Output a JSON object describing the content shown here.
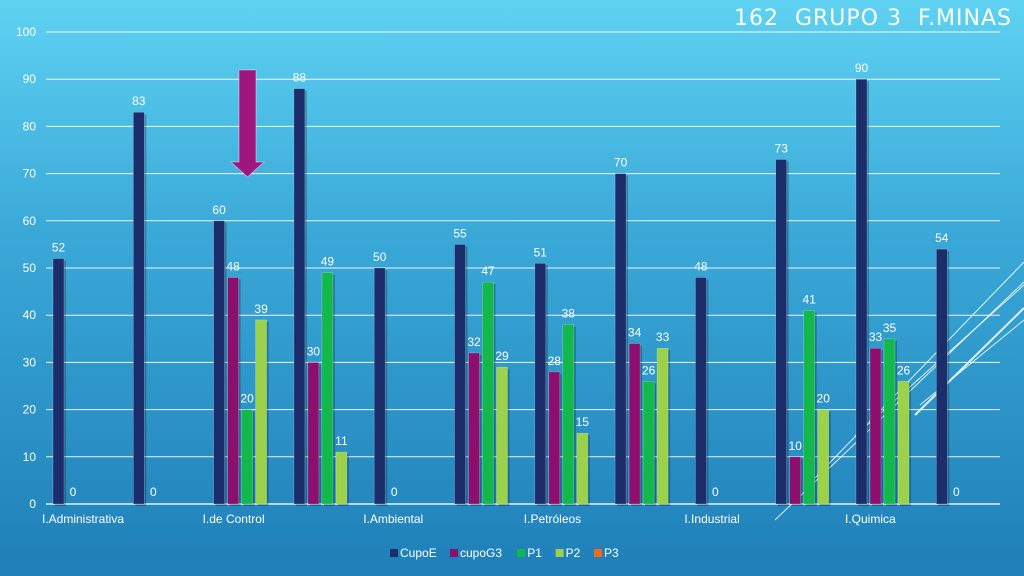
{
  "slide": {
    "title": "162  GRUPO 3  F.MINAS"
  },
  "colors": {
    "CupoE": "#1b2d6b",
    "cupoG3": "#8c0f6e",
    "P1": "#12b84a",
    "P2": "#9bd24a",
    "P3": "#e86b1f",
    "arrow": "#a0167f"
  },
  "chart_data": {
    "type": "bar",
    "categories": [
      "I.Administrativa",
      "",
      "I.de Control",
      "",
      "I.Ambiental",
      "",
      "I.Petróleos",
      "",
      "I.Industrial",
      "",
      "I.Quimica",
      ""
    ],
    "series": [
      {
        "name": "CupoE",
        "values": [
          52,
          83,
          60,
          88,
          50,
          55,
          51,
          70,
          48,
          73,
          90,
          54
        ]
      },
      {
        "name": "cupoG3",
        "values": [
          null,
          null,
          48,
          30,
          null,
          32,
          28,
          34,
          null,
          10,
          33,
          null
        ]
      },
      {
        "name": "P1",
        "values": [
          null,
          null,
          20,
          49,
          null,
          47,
          38,
          26,
          null,
          41,
          35,
          null
        ]
      },
      {
        "name": "P2",
        "values": [
          null,
          null,
          39,
          11,
          null,
          29,
          15,
          33,
          null,
          20,
          26,
          null
        ]
      },
      {
        "name": "P3",
        "values": [
          null,
          null,
          null,
          null,
          null,
          null,
          null,
          null,
          null,
          null,
          null,
          null
        ]
      }
    ],
    "zero_labels": [
      0,
      0,
      null,
      null,
      0,
      null,
      null,
      null,
      0,
      null,
      null,
      0
    ],
    "yticks": [
      0,
      10,
      20,
      30,
      40,
      50,
      60,
      70,
      80,
      90,
      100
    ],
    "ylim": [
      0,
      100
    ],
    "grid": true,
    "legend": "bottom",
    "annotation": "down-arrow-above-I.de-Control"
  }
}
